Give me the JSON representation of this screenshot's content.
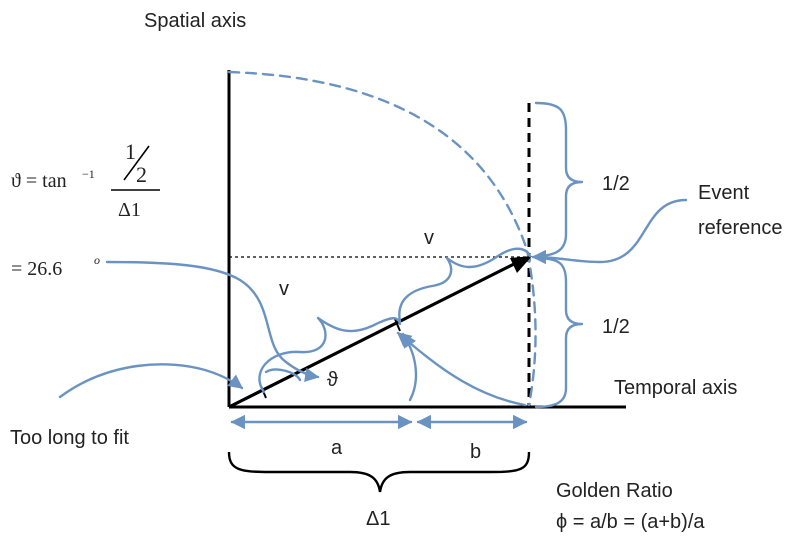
{
  "labels": {
    "spatial_axis": "Spatial axis",
    "temporal_axis": "Temporal axis",
    "event_reference_line1": "Event",
    "event_reference_line2": "reference",
    "half_top": "1/2",
    "half_bottom": "1/2",
    "v_upper": "v",
    "v_left": "v",
    "theta": "ϑ",
    "too_long": "Too long to fit",
    "a": "a",
    "b": "b",
    "delta1": "Δ1",
    "golden_ratio_title": "Golden Ratio",
    "golden_ratio_formula": "ϕ = a/b = (a+b)/a"
  },
  "formula": {
    "lhs": "ϑ = tan",
    "exponent": "−1",
    "numerator": "1",
    "denominator_small": "2",
    "denominator": "Δ1",
    "result_prefix": "= 26.6",
    "result_sup": "o"
  },
  "colors": {
    "accent_blue": "#6a93c2",
    "line_black": "#000000",
    "text": "#222222"
  }
}
